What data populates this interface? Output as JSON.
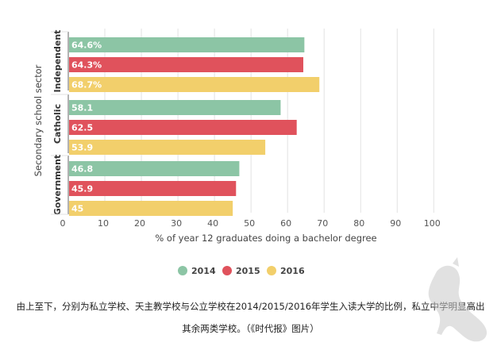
{
  "chart_data": {
    "type": "bar",
    "orientation": "horizontal",
    "ylabel": "Secondary school sector",
    "xlabel": "% of year 12 graduates doing a bachelor degree",
    "xlim": [
      0,
      100
    ],
    "xticks": [
      "0",
      "10",
      "20",
      "30",
      "40",
      "50",
      "60",
      "70",
      "80",
      "90",
      "100"
    ],
    "grid": "vertical",
    "legend_position": "bottom",
    "groups": [
      {
        "label": "Independent",
        "bars": [
          {
            "series": "2014",
            "value": 64.6,
            "label": "64.6%"
          },
          {
            "series": "2015",
            "value": 64.3,
            "label": "64.3%"
          },
          {
            "series": "2016",
            "value": 68.7,
            "label": "68.7%"
          }
        ]
      },
      {
        "label": "Catholic",
        "bars": [
          {
            "series": "2014",
            "value": 58.1,
            "label": "58.1"
          },
          {
            "series": "2015",
            "value": 62.5,
            "label": "62.5"
          },
          {
            "series": "2016",
            "value": 53.9,
            "label": "53.9"
          }
        ]
      },
      {
        "label": "Government",
        "bars": [
          {
            "series": "2014",
            "value": 46.8,
            "label": "46.8"
          },
          {
            "series": "2015",
            "value": 45.9,
            "label": "45.9"
          },
          {
            "series": "2016",
            "value": 45,
            "label": "45"
          }
        ]
      }
    ],
    "series": [
      {
        "name": "2014",
        "color": "#8cc5a5"
      },
      {
        "name": "2015",
        "color": "#e0525c"
      },
      {
        "name": "2016",
        "color": "#f2cf6b"
      }
    ]
  },
  "caption": {
    "line1": "由上至下，分别为私立学校、天主教学校与公立学校在2014/2015/2016年学生入读大学的比例，私立中学明显高出",
    "line2": "其余两类学校。（《时代报》图片）"
  },
  "colors": {
    "value_label": "#ffffff",
    "value_label_2015": "#e0525c",
    "axis_text": "#555555",
    "grid": "#e2e2e2",
    "group_border": "#666666"
  }
}
